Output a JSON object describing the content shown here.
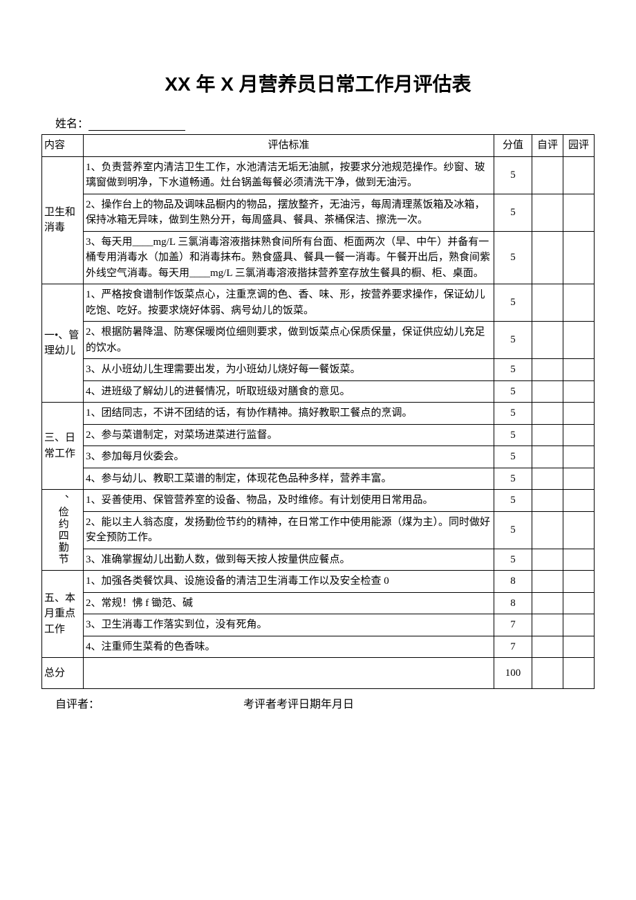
{
  "title": "XX 年 X 月营养员日常工作月评估表",
  "name_label": "姓名：",
  "headers": {
    "category": "内容",
    "criteria": "评估标准",
    "score": "分值",
    "self": "自评",
    "garden": "园评"
  },
  "sections": [
    {
      "category": "卫生和消毒",
      "rows": [
        {
          "text": "1、负责营养室内清洁卫生工作，水池清洁无垢无油腻，按要求分池规范操作。纱窗、玻璃窗做到明净，下水道畅通。灶台锅盖每餐必须清洗干净，做到无油污。",
          "score": "5"
        },
        {
          "text": "2、操作台上的物品及调味品橱内的物品，摆放整齐，无油污，每周清理蒸饭箱及冰箱，保持冰箱无异味，做到生熟分开，每周盛具、餐具、茶桶保洁、擦洗一次。",
          "score": "5"
        },
        {
          "text": "3、每天用____mg/L 三氯消毒溶液揩抹熟食间所有台面、柜面两次（早、中午）并备有一桶专用消毒水（加盖）和消毒抹布。熟食盛具、餐具一餐一消毒。午餐开出后，熟食间紫外线空气消毒。每天用____mg/L 三氯消毒溶液揩抹营养室存放生餐具的橱、柜、桌面。",
          "score": "5"
        }
      ]
    },
    {
      "category": "一•、管理幼儿",
      "rows": [
        {
          "text": "1、严格按食谱制作饭菜点心，注重烹调的色、香、味、形，按营养要求操作，保证幼儿吃饱、吃好。按要求烧好体弱、病号幼儿的饭菜。",
          "score": "5"
        },
        {
          "text": "2、根据防暑降温、防寒保暖岗位细则要求，做到饭菜点心保质保量，保证供应幼儿充足的饮水。",
          "score": "5"
        },
        {
          "text": "3、从小班幼儿生理需要出发，为小班幼儿烧好每一餐饭菜。",
          "score": "5"
        },
        {
          "text": "4、进班级了解幼儿的进餐情况，听取班级对膳食的意见。",
          "score": "5"
        }
      ]
    },
    {
      "category": "三、日常工作",
      "rows": [
        {
          "text": "1、团结同志，不讲不团结的话，有协作精神。搞好教职工餐点的烹调。",
          "score": "5"
        },
        {
          "text": "2、参与菜谱制定，对菜场进菜进行监督。",
          "score": "5"
        },
        {
          "text": "3、参加每月伙委会。",
          "score": "5"
        },
        {
          "text": "4、参与幼儿、教职工菜谱的制定，体现花色品种多样，营养丰富。",
          "score": "5"
        }
      ]
    },
    {
      "category": "、俭约四勤节",
      "vertical": true,
      "rows": [
        {
          "text": "1、妥善使用、保管营养室的设备、物品，及时维修。有计划使用日常用品。",
          "score": "5"
        },
        {
          "text": "2、能以主人翁态度，发扬勤俭节约的精神，在日常工作中使用能源（煤为主）。同时做好安全预防工作。",
          "score": "5"
        },
        {
          "text": "3、准确掌握幼儿出勤人数，做到每天按人按量供应餐点。",
          "score": "5"
        }
      ]
    },
    {
      "category": "五、本月重点工作",
      "rows": [
        {
          "text": "1、加强各类餐饮具、设施设备的清洁卫生消毒工作以及安全检查 0",
          "score": "8"
        },
        {
          "text": "2、常规！怫 f 锄范、碱",
          "score": "8"
        },
        {
          "text": "3、卫生消毒工作落实到位，没有死角。",
          "score": "7"
        },
        {
          "text": "4、注重师生菜肴的色香味。",
          "score": "7"
        }
      ]
    }
  ],
  "total": {
    "label": "总分",
    "score": "100"
  },
  "footer": {
    "self_evaluator": "自评者：",
    "evaluator_date": "考评者考评日期年月日"
  },
  "colors": {
    "background": "#ffffff",
    "text": "#000000",
    "border": "#000000"
  },
  "fonts": {
    "title_family": "SimHei",
    "body_family": "SimSun",
    "title_size": 28,
    "body_size": 15,
    "label_size": 16
  }
}
